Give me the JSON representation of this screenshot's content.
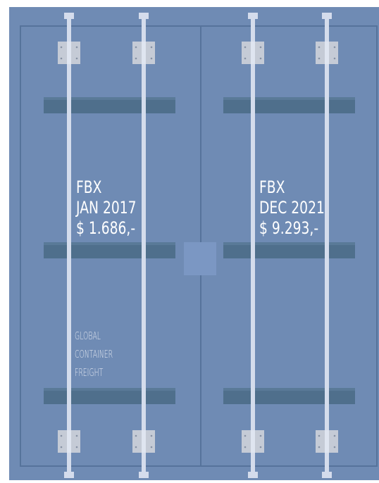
{
  "panels": [
    {
      "lines": [
        "FBX",
        "JAN 2017",
        "$ 1.686,-"
      ]
    },
    {
      "lines": [
        "FBX",
        "DEC 2021",
        "$ 9.293,-"
      ]
    }
  ],
  "caption": {
    "lines": [
      "GLOBAL",
      "CONTAINER",
      "FREIGHT"
    ]
  }
}
